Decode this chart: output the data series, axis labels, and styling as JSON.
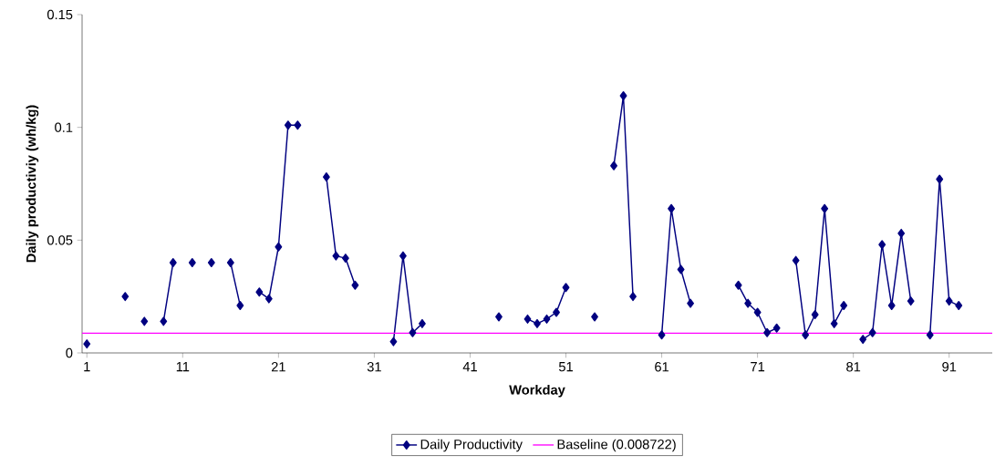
{
  "chart_data": {
    "type": "line",
    "xlabel": "Workday",
    "ylabel": "Daily productiviy (wh/kg)",
    "xlim": [
      0.5,
      95.5
    ],
    "xticks": [
      1,
      11,
      21,
      31,
      41,
      51,
      61,
      71,
      81,
      91
    ],
    "ylim": [
      0,
      0.15
    ],
    "yticks": [
      0,
      0.05,
      0.1,
      0.15
    ],
    "x": [
      1,
      2,
      3,
      4,
      5,
      6,
      7,
      8,
      9,
      10,
      11,
      12,
      13,
      14,
      15,
      16,
      17,
      18,
      19,
      20,
      21,
      22,
      23,
      24,
      25,
      26,
      27,
      28,
      29,
      30,
      31,
      32,
      33,
      34,
      35,
      36,
      37,
      38,
      39,
      40,
      41,
      42,
      43,
      44,
      45,
      46,
      47,
      48,
      49,
      50,
      51,
      52,
      53,
      54,
      55,
      56,
      57,
      58,
      59,
      60,
      61,
      62,
      63,
      64,
      65,
      66,
      67,
      68,
      69,
      70,
      71,
      72,
      73,
      74,
      75,
      76,
      77,
      78,
      79,
      80,
      81,
      82,
      83,
      84,
      85,
      86,
      87,
      88,
      89,
      90,
      91,
      92
    ],
    "series": [
      {
        "name": "Daily Productivity",
        "color": "#000080",
        "values": [
          0.004,
          null,
          null,
          null,
          0.025,
          null,
          0.014,
          null,
          0.014,
          0.04,
          null,
          0.04,
          null,
          0.04,
          null,
          0.04,
          0.021,
          null,
          0.027,
          0.024,
          0.047,
          0.101,
          0.101,
          null,
          null,
          0.078,
          0.043,
          0.042,
          0.03,
          null,
          null,
          null,
          0.005,
          0.043,
          0.009,
          0.013,
          null,
          null,
          null,
          null,
          null,
          null,
          null,
          0.016,
          null,
          null,
          0.015,
          0.013,
          0.015,
          0.018,
          0.029,
          null,
          null,
          0.016,
          null,
          0.083,
          0.114,
          0.025,
          null,
          null,
          0.008,
          0.064,
          0.037,
          0.022,
          null,
          null,
          null,
          null,
          0.03,
          0.022,
          0.018,
          0.009,
          0.011,
          null,
          0.041,
          0.008,
          0.017,
          0.064,
          0.013,
          0.021,
          null,
          0.006,
          0.009,
          0.048,
          0.021,
          0.053,
          0.023,
          null,
          0.008,
          0.077,
          0.023,
          0.021
        ]
      }
    ],
    "ref_lines": [
      {
        "axis": "y",
        "value": 0.008722,
        "label": "Baseline  (0.008722)",
        "color": "#ff00ff"
      }
    ],
    "marker": "diamond",
    "line_style": "solid",
    "grid": false,
    "legend": "bottom"
  }
}
